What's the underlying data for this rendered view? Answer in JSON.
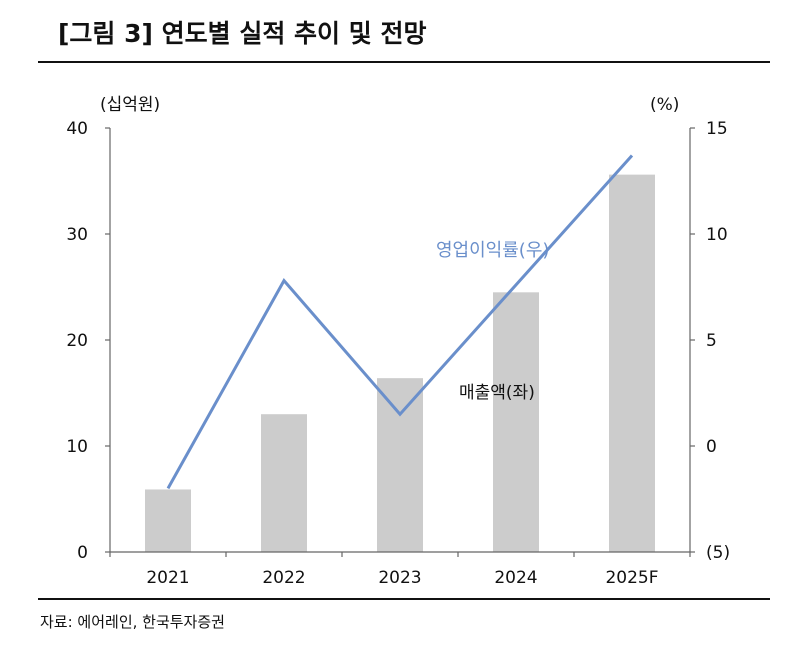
{
  "title": "[그림 3] 연도별 실적 추이 및 전망",
  "source": "자료: 에어레인, 한국투자증권",
  "chart_data": {
    "type": "bar+line",
    "categories": [
      "2021",
      "2022",
      "2023",
      "2024",
      "2025F"
    ],
    "left_axis": {
      "unit_label": "(십억원)",
      "range": [
        0,
        40
      ],
      "ticks": [
        "0",
        "10",
        "20",
        "30",
        "40"
      ]
    },
    "right_axis": {
      "unit_label": "(%)",
      "range": [
        -5,
        15
      ],
      "ticks": [
        "(5)",
        "0",
        "5",
        "10",
        "15"
      ]
    },
    "series": [
      {
        "name": "매출액(좌)",
        "type": "bar",
        "axis": "left",
        "color": "#cccccc",
        "values": [
          5.9,
          13.0,
          16.4,
          24.5,
          35.6
        ]
      },
      {
        "name": "영업이익률(우)",
        "type": "line",
        "axis": "right",
        "color": "#6a8fcb",
        "values": [
          -2.0,
          7.8,
          1.5,
          7.6,
          13.7
        ]
      }
    ],
    "grid": false
  }
}
